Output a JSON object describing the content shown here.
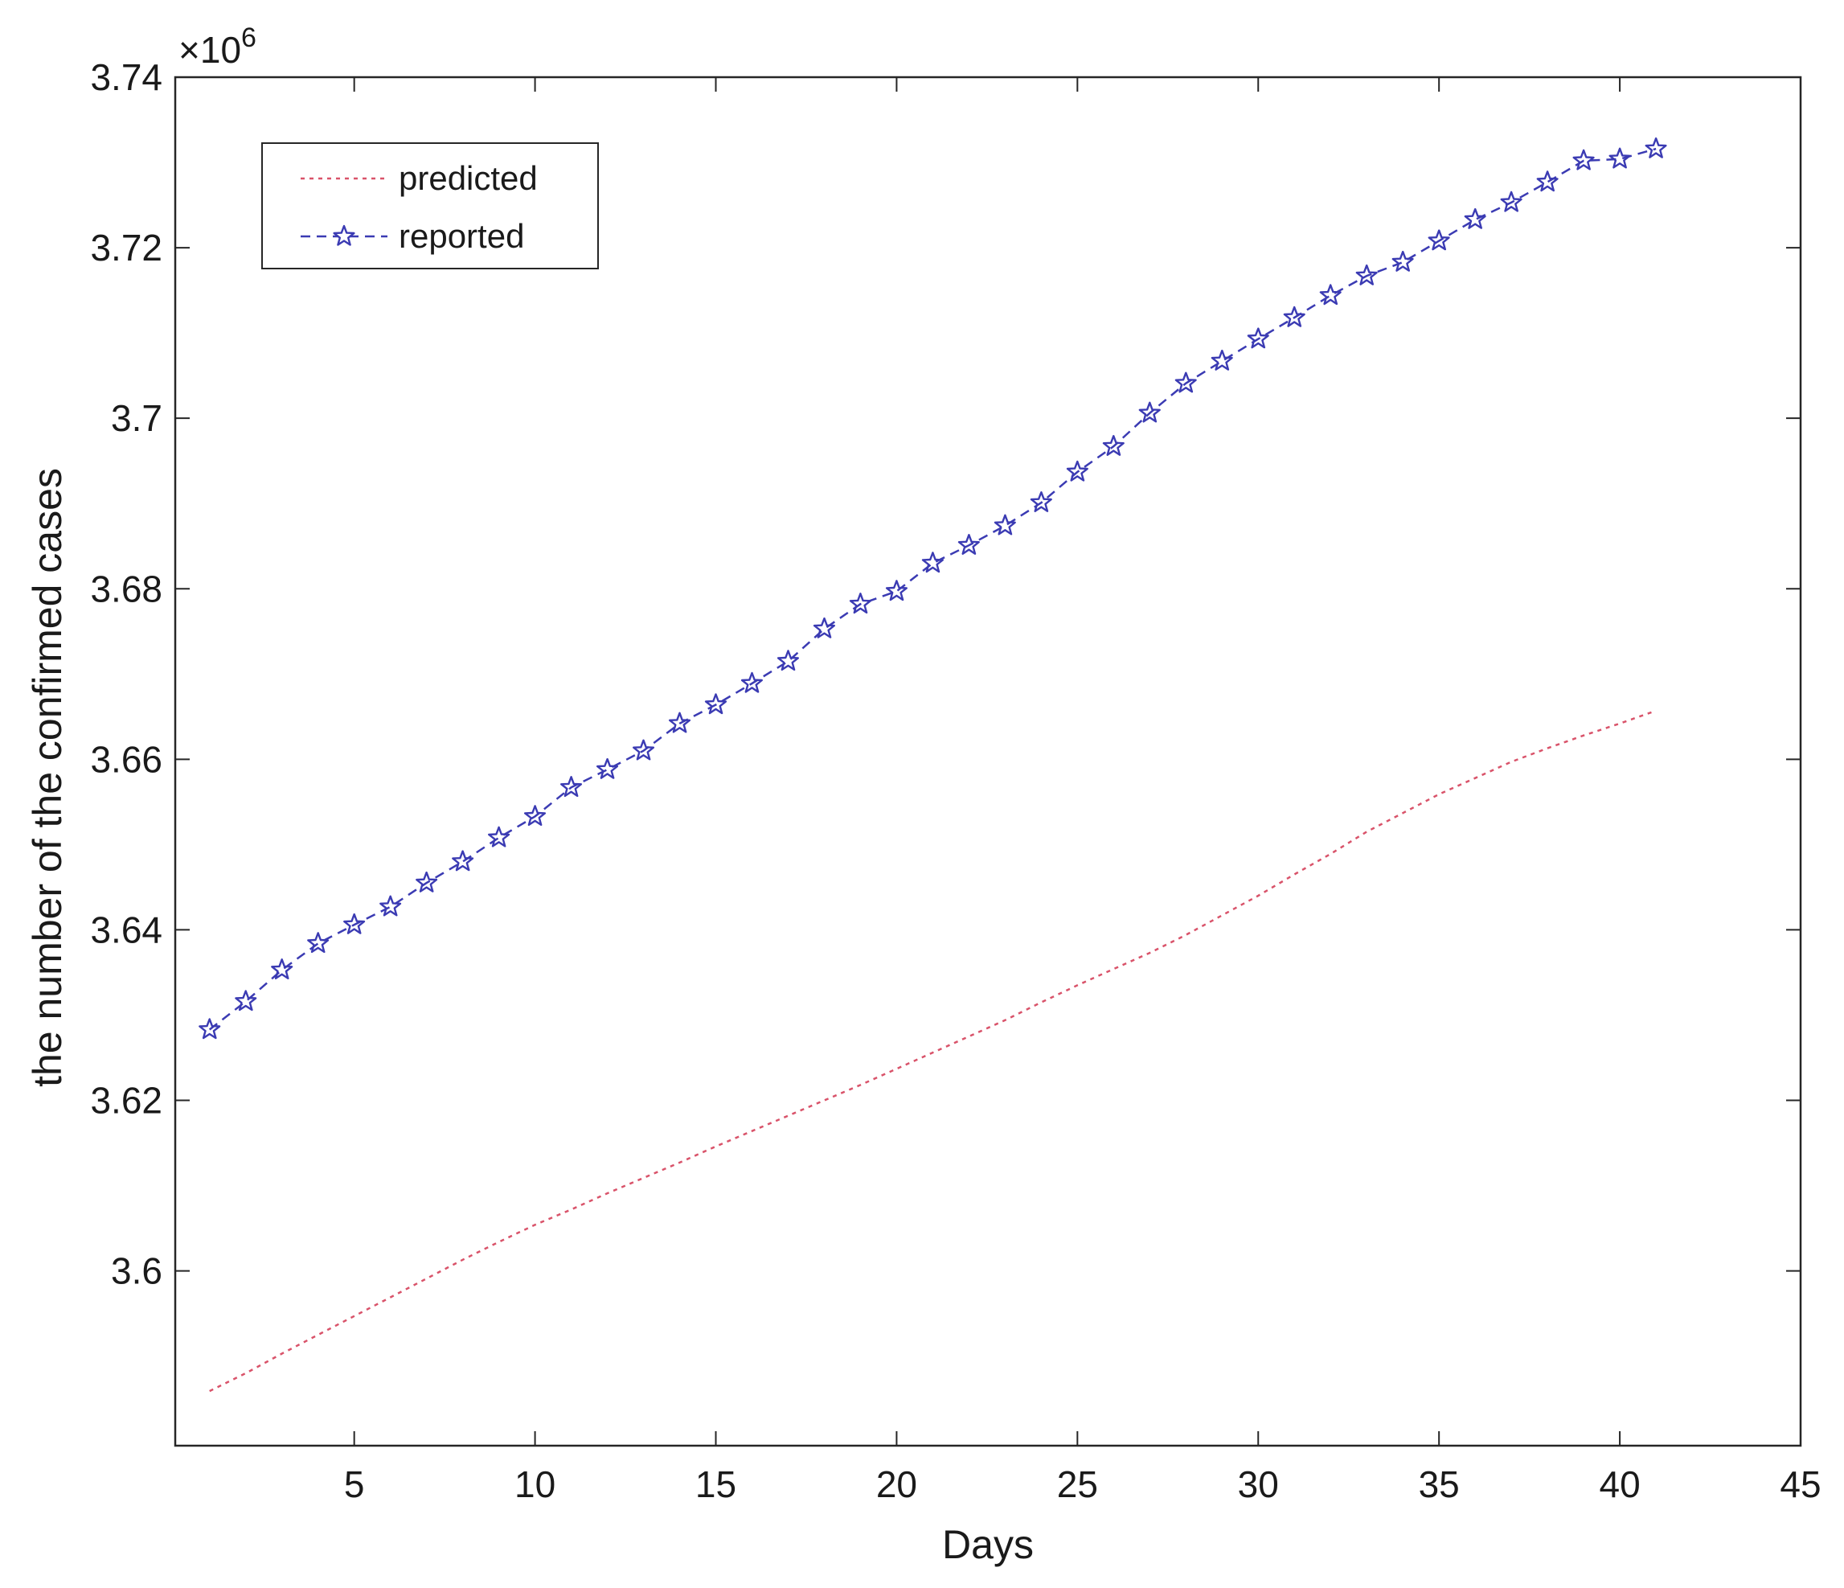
{
  "chart_data": {
    "type": "line",
    "title": "",
    "xlabel": "Days",
    "ylabel": "the number of the confirmed cases",
    "y_exponent_label": "×10",
    "y_exponent_power": "6",
    "xlim": [
      0.05,
      45
    ],
    "ylim": [
      3.5795,
      3.74
    ],
    "x_ticks": [
      5,
      10,
      15,
      20,
      25,
      30,
      35,
      40,
      45
    ],
    "x_tick_labels": [
      "5",
      "10",
      "15",
      "20",
      "25",
      "30",
      "35",
      "40",
      "45"
    ],
    "y_ticks": [
      3.6,
      3.62,
      3.64,
      3.66,
      3.68,
      3.7,
      3.72,
      3.74
    ],
    "y_tick_labels": [
      "3.6",
      "3.62",
      "3.64",
      "3.66",
      "3.68",
      "3.7",
      "3.72",
      "3.74"
    ],
    "grid": false,
    "legend_position": "top-left",
    "series": [
      {
        "name": "predicted",
        "color": "#d9536a",
        "line_style": "dotted",
        "marker": "none",
        "x": [
          1,
          2,
          3,
          4,
          5,
          6,
          7,
          8,
          9,
          10,
          11,
          12,
          13,
          14,
          15,
          16,
          17,
          18,
          19,
          20,
          21,
          22,
          23,
          24,
          25,
          26,
          27,
          28,
          29,
          30,
          31,
          32,
          33,
          34,
          35,
          36,
          37,
          38,
          39,
          40,
          41
        ],
        "values": [
          3.5859,
          3.588,
          3.5903,
          3.5925,
          3.5947,
          3.5969,
          3.5991,
          3.6013,
          3.6034,
          3.6054,
          3.6072,
          3.6091,
          3.6109,
          3.6127,
          3.6146,
          3.6164,
          3.6182,
          3.62,
          3.6218,
          3.6237,
          3.6256,
          3.6275,
          3.6294,
          3.6315,
          3.6335,
          3.6354,
          3.6373,
          3.6394,
          3.6417,
          3.644,
          3.6465,
          3.6489,
          3.6515,
          3.6537,
          3.6559,
          3.6578,
          3.6597,
          3.6613,
          3.6628,
          3.6642,
          3.6657
        ]
      },
      {
        "name": "reported",
        "color": "#3b3bb3",
        "line_style": "dashed",
        "marker": "star",
        "x": [
          1,
          2,
          3,
          4,
          5,
          6,
          7,
          8,
          9,
          10,
          11,
          12,
          13,
          14,
          15,
          16,
          17,
          18,
          19,
          20,
          21,
          22,
          23,
          24,
          25,
          26,
          27,
          28,
          29,
          30,
          31,
          32,
          33,
          34,
          35,
          36,
          37,
          38,
          39,
          40,
          41
        ],
        "values": [
          3.6283,
          3.6316,
          3.6353,
          3.6384,
          3.6406,
          3.6427,
          3.6455,
          3.648,
          3.6508,
          3.6533,
          3.6567,
          3.6588,
          3.661,
          3.6642,
          3.6664,
          3.6689,
          3.6715,
          3.6753,
          3.6782,
          3.6797,
          3.683,
          3.6851,
          3.6874,
          3.6901,
          3.6937,
          3.6967,
          3.7006,
          3.7041,
          3.7067,
          3.7093,
          3.7118,
          3.7144,
          3.7167,
          3.7183,
          3.7208,
          3.7233,
          3.7253,
          3.7277,
          3.7302,
          3.7304,
          3.7316
        ]
      }
    ]
  }
}
